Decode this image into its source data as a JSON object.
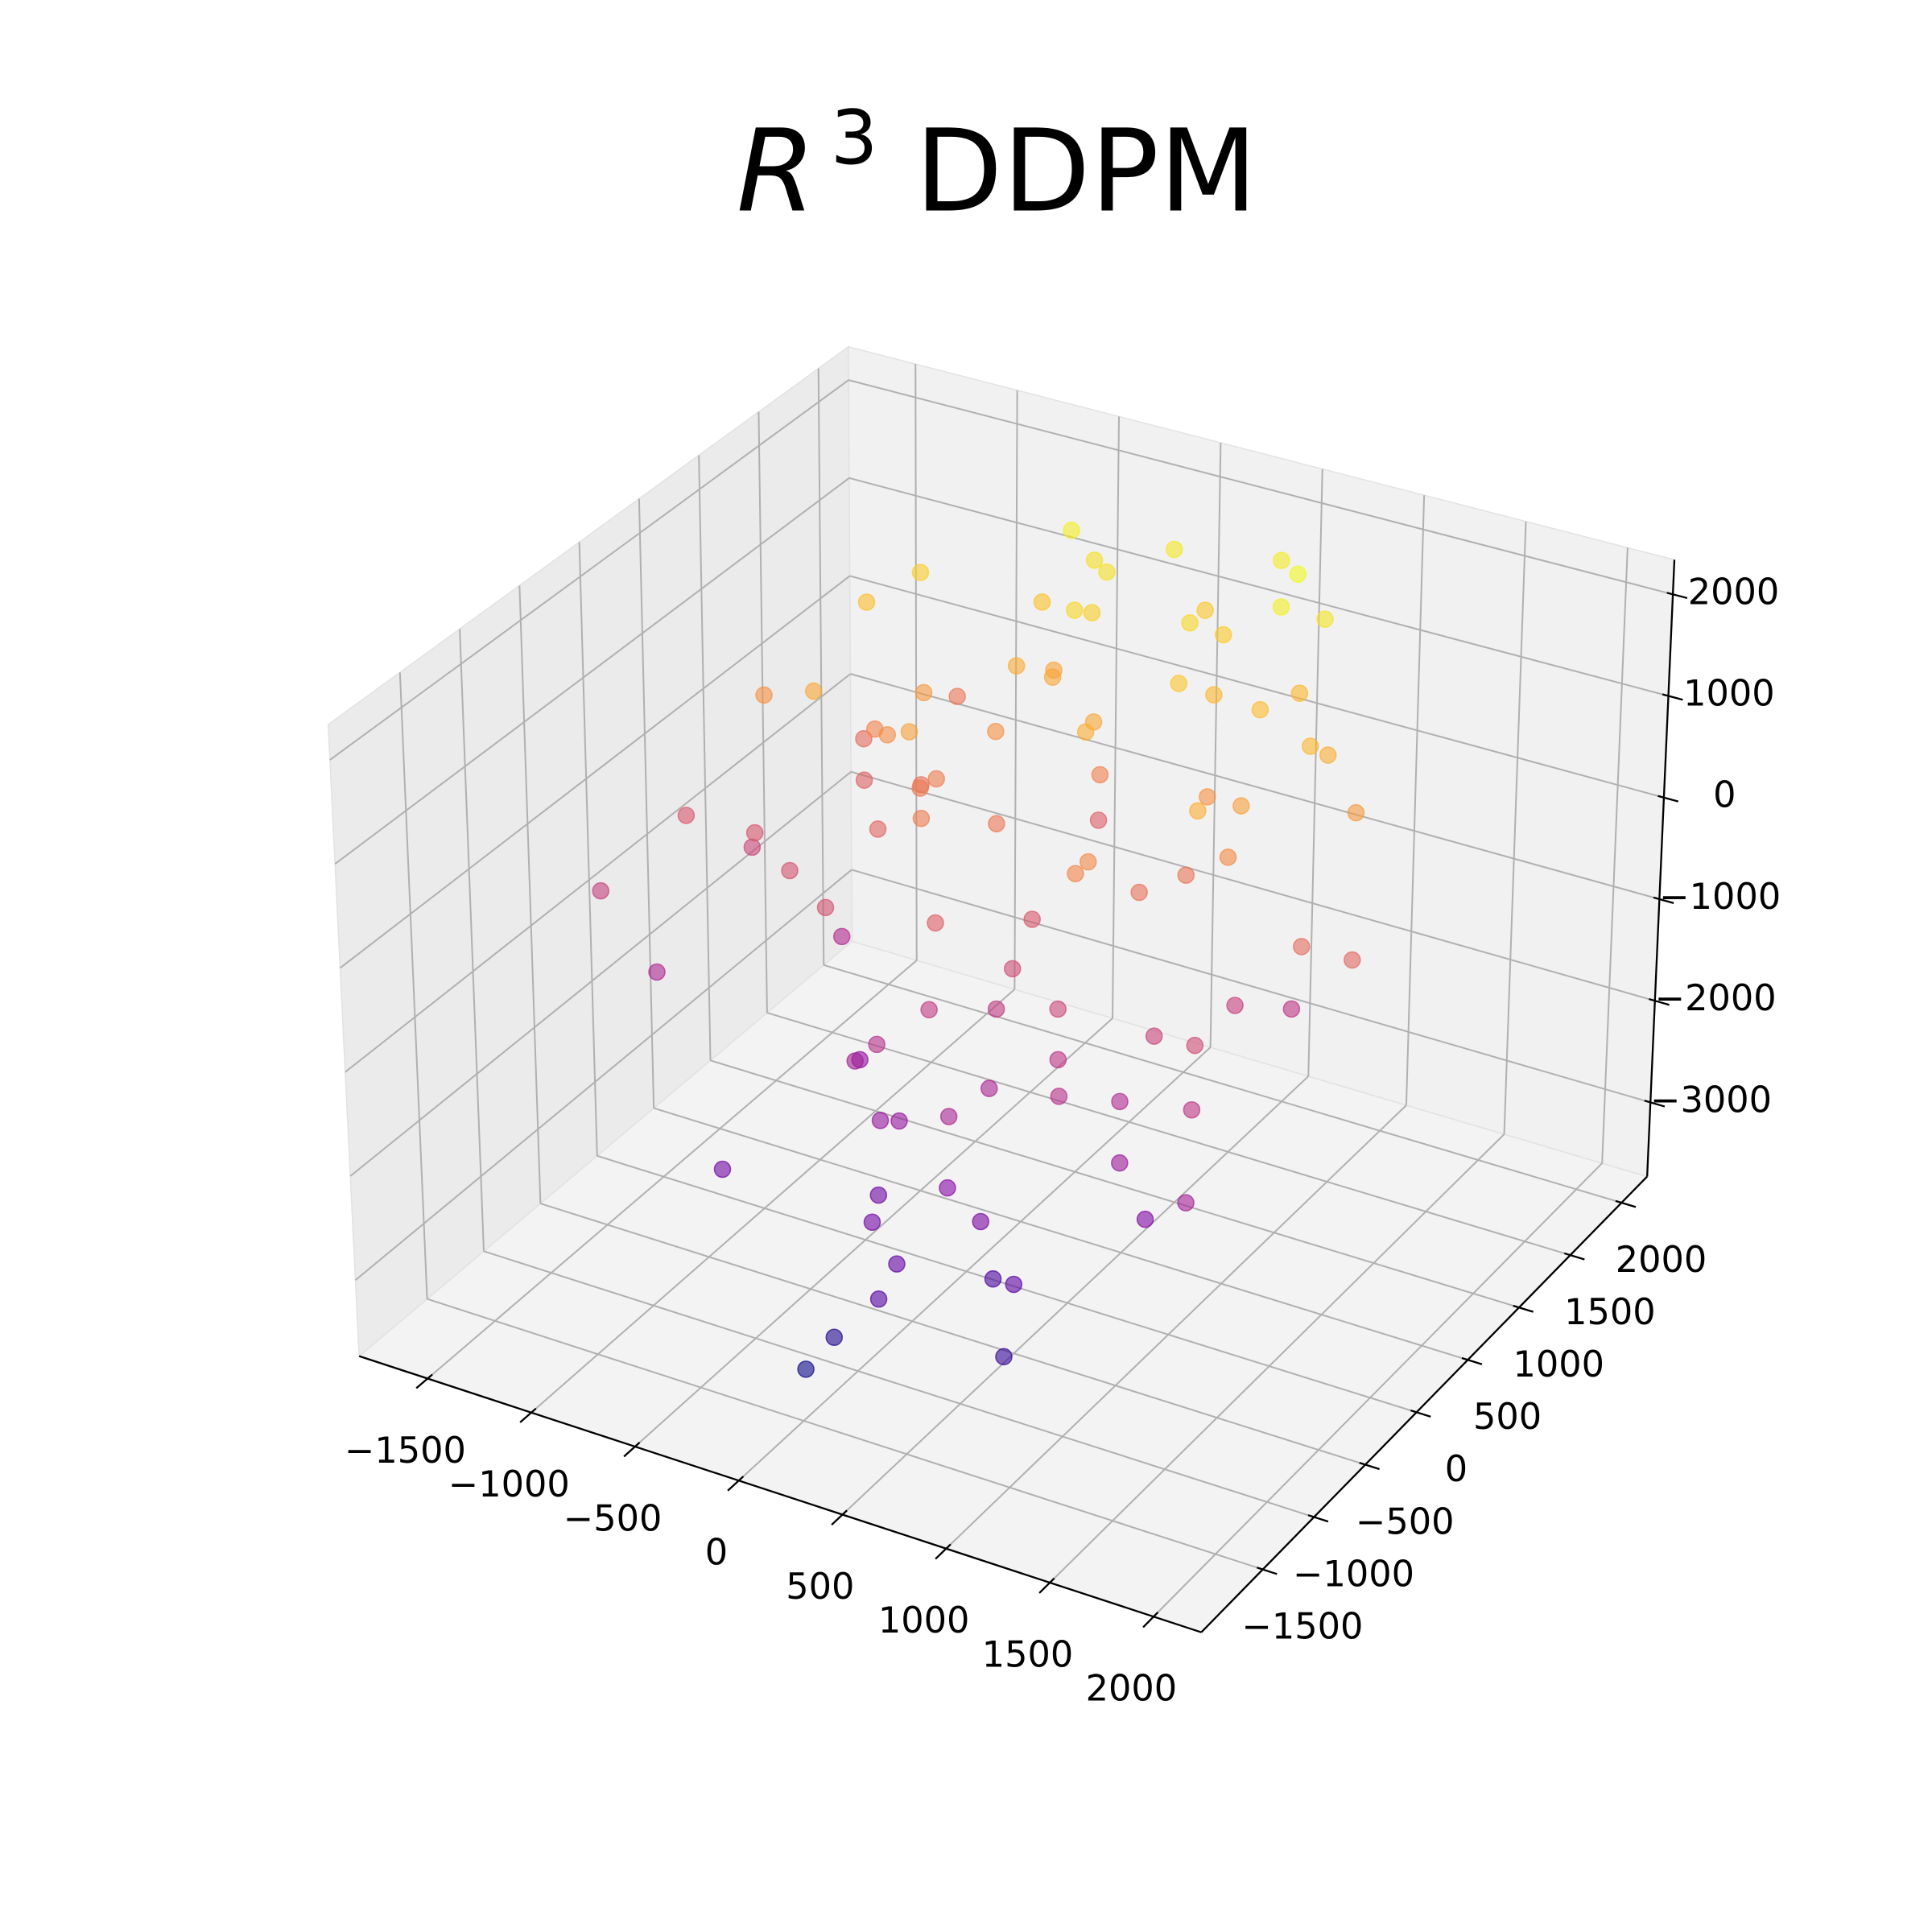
{
  "chart_data": {
    "type": "scatter3d",
    "title": {
      "italic": "R",
      "superscript": "3",
      "text": "DDPM"
    },
    "colormap": "plasma",
    "grid": true,
    "xlim": [
      -1830,
      2230
    ],
    "ylim": [
      -2100,
      2250
    ],
    "zlim": [
      -3730,
      2340
    ],
    "xticks": [
      {
        "value": -1500,
        "label": "−1500"
      },
      {
        "value": -1000,
        "label": "−1000"
      },
      {
        "value": -500,
        "label": "−500"
      },
      0,
      500,
      1000,
      1500,
      2000
    ],
    "yticks": [
      {
        "value": -1500,
        "label": "−1500"
      },
      {
        "value": -1000,
        "label": "−1000"
      },
      {
        "value": -500,
        "label": "−500"
      },
      0,
      500,
      1000,
      1500,
      2000
    ],
    "zticks": [
      {
        "value": -3000,
        "label": "−3000"
      },
      {
        "value": -2000,
        "label": "−2000"
      },
      {
        "value": -1000,
        "label": "−1000"
      },
      0,
      1000,
      2000
    ],
    "x": [
      -320,
      410,
      150,
      -880,
      620,
      1050,
      -150,
      280,
      -560,
      840,
      90,
      -1210,
      730,
      -40,
      1320,
      -690,
      360,
      520,
      -260,
      980,
      -1450,
      210,
      640,
      -780,
      1180,
      -90,
      470,
      -350,
      760,
      30,
      1540,
      -520,
      300,
      -1020,
      870,
      130,
      -610,
      1100,
      -200,
      560,
      -930,
      40,
      1250,
      -440,
      690,
      250,
      -1300,
      820,
      -70,
      380,
      1420,
      -160,
      590,
      -720,
      190,
      960,
      -390,
      1360,
      -840,
      110,
      450,
      -1080,
      700,
      -230,
      1010,
      330,
      -590,
      60,
      1200,
      -480,
      240,
      -1600,
      900,
      -300,
      560,
      -1000,
      1500,
      -120,
      780,
      350,
      -700,
      1140,
      20,
      -420,
      670,
      -1150,
      880,
      160,
      -560,
      1030,
      -250,
      500,
      -900,
      1280,
      70,
      -360,
      820,
      -1250,
      440,
      1700
    ],
    "y": [
      210,
      -540,
      880,
      60,
      -1020,
      430,
      1250,
      -230,
      640,
      1100,
      -760,
      320,
      1480,
      -180,
      520,
      900,
      -1300,
      40,
      1620,
      -420,
      180,
      700,
      -950,
      1350,
      260,
      -620,
      1050,
      -300,
      780,
      1800,
      -880,
      470,
      -120,
      960,
      1400,
      -1450,
      350,
      -650,
      1150,
      80,
      1300,
      -390,
      -700,
      560,
      1700,
      150,
      600,
      -1100,
      420,
      -850,
      900,
      1550,
      -250,
      220,
      -1200,
      320,
      1650,
      -480,
      740,
      1000,
      -1000,
      1100,
      280,
      -560,
      620,
      1400,
      -150,
      -900,
      1050,
      490,
      1700,
      -300,
      -1350,
      830,
      1200,
      500,
      260,
      1350,
      -600,
      -1450,
      600,
      1000,
      -800,
      1450,
      -400,
      240,
      1600,
      920,
      -1150,
      -200,
      1250,
      1900,
      750,
      -300,
      -1600,
      1120,
      480,
      -450,
      1500,
      350
    ],
    "z": [
      300,
      -1200,
      900,
      -400,
      -1900,
      500,
      1500,
      -800,
      100,
      1200,
      -1500,
      -600,
      1800,
      -200,
      -900,
      700,
      -2200,
      400,
      1600,
      -1100,
      -300,
      1000,
      -2500,
      200,
      -700,
      -1000,
      1300,
      -1600,
      600,
      1700,
      -1300,
      800,
      -500,
      0,
      1100,
      -2900,
      -100,
      -1400,
      900,
      500,
      1400,
      -800,
      -1800,
      300,
      1900,
      -300,
      600,
      -2300,
      200,
      -1200,
      700,
      1600,
      -600,
      -1100,
      -2000,
      1000,
      1800,
      -900,
      400,
      -200,
      -1700,
      1200,
      100,
      -1300,
      800,
      1500,
      -400,
      -2100,
      1000,
      250,
      1300,
      -700,
      -2700,
      600,
      1100,
      900,
      50,
      1400,
      -1000,
      -2400,
      550,
      1100,
      -1500,
      1250,
      -900,
      -350,
      1650,
      350,
      -2000,
      -650,
      850,
      1750,
      -150,
      -500,
      -3100,
      950,
      150,
      -1150,
      1350,
      -50
    ]
  }
}
